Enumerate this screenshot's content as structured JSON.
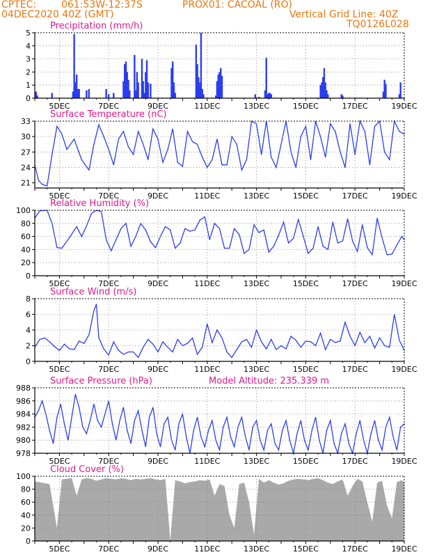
{
  "header": {
    "source": "CPTEC:",
    "coords": "061:53W-12:37S",
    "location": "PROX01: CACOAL (RO)",
    "date": "04DEC2020 40Z (GMT)",
    "grid_note": "Vertical Grid Line: 40Z",
    "model_code": "TQ0126L028"
  },
  "model_altitude_label": "Model Altitude: 235.339 m",
  "colors": {
    "header": "#e8760f",
    "title": "#e0198a",
    "line": "#2a3cf0",
    "bar": "#2a3cf0",
    "cloud": "#a9a9a9",
    "grid": "#7a7a7a",
    "axis": "#000000"
  },
  "x_axis": {
    "start_day": 4,
    "end_day": 19,
    "tick_labels": [
      "5DEC",
      "7DEC",
      "9DEC",
      "11DEC",
      "13DEC",
      "15DEC",
      "17DEC",
      "19DEC"
    ],
    "tick_days": [
      5,
      7,
      9,
      11,
      13,
      15,
      17,
      19
    ]
  },
  "chart_data": [
    {
      "type": "bar",
      "title": "Precipitation (mm/h)",
      "ylim": [
        0,
        5
      ],
      "yticks": [
        0,
        1,
        2,
        3,
        4,
        5
      ],
      "x": [
        4.05,
        4.1,
        4.7,
        5.55,
        5.6,
        5.65,
        5.7,
        5.75,
        5.8,
        6.1,
        6.2,
        6.9,
        7.0,
        7.2,
        7.6,
        7.65,
        7.7,
        7.75,
        7.8,
        7.85,
        8.05,
        8.1,
        8.15,
        8.2,
        8.35,
        8.4,
        8.45,
        8.5,
        8.55,
        8.6,
        8.7,
        9.55,
        9.6,
        9.65,
        9.7,
        10.55,
        10.6,
        10.65,
        10.7,
        10.75,
        10.8,
        10.85,
        11.35,
        11.4,
        11.45,
        11.5,
        11.55,
        11.6,
        12.95,
        13.1,
        13.35,
        13.4,
        13.45,
        13.5,
        13.55,
        13.6,
        15.6,
        15.65,
        15.7,
        15.75,
        15.8,
        15.85,
        15.9,
        16.45,
        16.5,
        18.15,
        18.2,
        18.25,
        18.8,
        18.85
      ],
      "values": [
        0.5,
        0.2,
        0.4,
        0.5,
        4.9,
        1.2,
        1.8,
        0.7,
        0.7,
        0.6,
        0.7,
        0.7,
        0.3,
        0.4,
        1.3,
        2.6,
        2.8,
        2.0,
        1.4,
        0.6,
        3.3,
        0.6,
        2.0,
        1.2,
        3.0,
        1.3,
        0.4,
        2.0,
        2.9,
        1.2,
        1.1,
        2.3,
        2.8,
        1.2,
        0.4,
        4.1,
        2.6,
        1.6,
        1.2,
        5.0,
        0.7,
        0.3,
        0.2,
        1.3,
        1.8,
        2.0,
        2.3,
        1.7,
        0.3,
        0.1,
        0.6,
        3.1,
        0.3,
        0.4,
        0.4,
        0.3,
        1.0,
        1.2,
        1.6,
        2.3,
        1.2,
        0.6,
        0.3,
        0.3,
        0.2,
        0.5,
        1.4,
        1.1,
        0.3,
        1.2
      ]
    },
    {
      "type": "line",
      "title": "Surface Temperature (nC)",
      "ylim": [
        20,
        33
      ],
      "yticks": [
        21,
        24,
        27,
        30,
        33
      ],
      "x": [
        4.0,
        4.15,
        4.3,
        4.5,
        4.7,
        4.9,
        5.1,
        5.3,
        5.6,
        5.9,
        6.2,
        6.4,
        6.6,
        6.8,
        7.0,
        7.2,
        7.4,
        7.6,
        7.8,
        8.0,
        8.2,
        8.4,
        8.6,
        8.8,
        9.0,
        9.2,
        9.4,
        9.6,
        9.8,
        10.0,
        10.2,
        10.4,
        10.6,
        10.8,
        11.0,
        11.2,
        11.4,
        11.6,
        11.8,
        12.0,
        12.2,
        12.4,
        12.6,
        12.8,
        13.0,
        13.2,
        13.4,
        13.6,
        13.8,
        14.0,
        14.2,
        14.4,
        14.6,
        14.8,
        15.0,
        15.2,
        15.4,
        15.6,
        15.8,
        16.0,
        16.2,
        16.4,
        16.6,
        16.8,
        17.0,
        17.2,
        17.4,
        17.6,
        17.8,
        18.0,
        18.2,
        18.4,
        18.6,
        18.8,
        19.0
      ],
      "values": [
        24.5,
        21.5,
        20.7,
        20.4,
        26.5,
        32.0,
        30.5,
        27.5,
        29.5,
        25.5,
        23.5,
        28.5,
        32.3,
        30.0,
        27.5,
        24.5,
        29.5,
        31.0,
        28.0,
        26.5,
        31.0,
        28.5,
        25.5,
        31.5,
        29.5,
        25.0,
        27.5,
        31.5,
        25.0,
        24.2,
        31.0,
        29.0,
        28.5,
        26.0,
        24.0,
        25.5,
        29.5,
        24.5,
        24.5,
        30.0,
        28.5,
        23.5,
        25.5,
        33.0,
        32.5,
        26.5,
        33.0,
        26.0,
        24.0,
        28.5,
        33.0,
        27.0,
        24.0,
        30.0,
        32.0,
        25.5,
        33.0,
        30.0,
        26.0,
        32.5,
        31.0,
        27.0,
        24.0,
        32.5,
        26.5,
        33.0,
        31.0,
        24.5,
        32.0,
        33.0,
        27.0,
        25.5,
        33.0,
        31.0,
        30.5
      ]
    },
    {
      "type": "line",
      "title": "Relative Humidity (%)",
      "ylim": [
        0,
        100
      ],
      "yticks": [
        0,
        20,
        40,
        60,
        80,
        100
      ],
      "x": [
        4.0,
        4.2,
        4.5,
        4.7,
        4.9,
        5.1,
        5.4,
        5.7,
        5.9,
        6.1,
        6.3,
        6.5,
        6.7,
        6.9,
        7.1,
        7.3,
        7.5,
        7.7,
        7.9,
        8.1,
        8.3,
        8.5,
        8.7,
        8.9,
        9.1,
        9.3,
        9.5,
        9.7,
        9.9,
        10.1,
        10.3,
        10.5,
        10.7,
        10.9,
        11.1,
        11.3,
        11.5,
        11.7,
        11.9,
        12.1,
        12.3,
        12.5,
        12.7,
        12.9,
        13.1,
        13.3,
        13.5,
        13.7,
        13.9,
        14.1,
        14.3,
        14.5,
        14.7,
        14.9,
        15.1,
        15.3,
        15.5,
        15.7,
        15.9,
        16.1,
        16.3,
        16.5,
        16.7,
        16.9,
        17.1,
        17.3,
        17.5,
        17.7,
        17.9,
        18.1,
        18.3,
        18.5,
        18.7,
        18.9,
        19.0
      ],
      "values": [
        88,
        99,
        100,
        80,
        43,
        42,
        58,
        75,
        60,
        76,
        95,
        100,
        98,
        55,
        38,
        55,
        72,
        80,
        45,
        60,
        80,
        70,
        52,
        43,
        60,
        75,
        70,
        42,
        50,
        72,
        68,
        70,
        85,
        90,
        55,
        80,
        72,
        42,
        42,
        72,
        63,
        34,
        40,
        78,
        66,
        70,
        36,
        45,
        62,
        82,
        50,
        57,
        86,
        60,
        34,
        42,
        75,
        45,
        40,
        82,
        50,
        53,
        87,
        53,
        37,
        78,
        43,
        32,
        88,
        58,
        32,
        33,
        47,
        60,
        55
      ]
    },
    {
      "type": "line",
      "title": "Surface Wind (m/s)",
      "ylim": [
        0,
        8
      ],
      "yticks": [
        0,
        2,
        4,
        6,
        8
      ],
      "x": [
        4.0,
        4.2,
        4.4,
        4.6,
        4.8,
        5.0,
        5.2,
        5.4,
        5.6,
        5.8,
        6.0,
        6.2,
        6.4,
        6.5,
        6.6,
        6.8,
        7.0,
        7.2,
        7.4,
        7.6,
        7.8,
        8.0,
        8.2,
        8.4,
        8.6,
        8.8,
        9.0,
        9.2,
        9.4,
        9.6,
        9.8,
        10.0,
        10.2,
        10.4,
        10.6,
        10.8,
        11.0,
        11.2,
        11.4,
        11.6,
        11.8,
        12.0,
        12.2,
        12.4,
        12.6,
        12.8,
        13.0,
        13.2,
        13.4,
        13.6,
        13.8,
        14.0,
        14.2,
        14.4,
        14.6,
        14.8,
        15.0,
        15.2,
        15.4,
        15.6,
        15.8,
        16.0,
        16.2,
        16.4,
        16.6,
        16.8,
        17.0,
        17.2,
        17.4,
        17.6,
        17.8,
        18.0,
        18.2,
        18.4,
        18.6,
        18.8,
        19.0
      ],
      "values": [
        1.8,
        2.8,
        3.0,
        2.5,
        1.9,
        1.4,
        2.2,
        1.6,
        1.5,
        2.6,
        2.3,
        3.4,
        6.5,
        7.3,
        3.0,
        1.6,
        0.8,
        2.5,
        1.4,
        0.9,
        1.2,
        1.2,
        0.5,
        1.8,
        2.8,
        2.2,
        1.2,
        2.5,
        1.8,
        1.2,
        2.8,
        2.0,
        2.3,
        3.0,
        0.9,
        1.8,
        4.8,
        2.4,
        4.0,
        3.0,
        1.2,
        0.5,
        1.5,
        2.5,
        2.8,
        1.8,
        4.0,
        2.5,
        1.6,
        2.8,
        1.5,
        2.0,
        1.6,
        3.2,
        2.7,
        1.8,
        2.6,
        2.5,
        2.0,
        3.6,
        1.5,
        2.8,
        2.4,
        2.6,
        5.0,
        3.2,
        2.0,
        3.7,
        2.4,
        3.2,
        1.7,
        3.0,
        2.0,
        1.8,
        6.0,
        2.7,
        1.4
      ]
    },
    {
      "type": "line",
      "title": "Surface Pressure (hPa)",
      "ylim": [
        978,
        988
      ],
      "yticks": [
        978,
        980,
        982,
        984,
        986,
        988
      ],
      "x": [
        4.0,
        4.15,
        4.3,
        4.45,
        4.6,
        4.75,
        4.9,
        5.05,
        5.2,
        5.35,
        5.5,
        5.65,
        5.8,
        5.95,
        6.1,
        6.25,
        6.4,
        6.55,
        6.7,
        6.85,
        7.0,
        7.15,
        7.3,
        7.45,
        7.6,
        7.75,
        7.9,
        8.05,
        8.2,
        8.35,
        8.5,
        8.65,
        8.8,
        8.95,
        9.1,
        9.25,
        9.4,
        9.55,
        9.7,
        9.85,
        10.0,
        10.15,
        10.3,
        10.45,
        10.6,
        10.75,
        10.9,
        11.05,
        11.2,
        11.35,
        11.5,
        11.65,
        11.8,
        11.95,
        12.1,
        12.25,
        12.4,
        12.55,
        12.7,
        12.85,
        13.0,
        13.15,
        13.3,
        13.45,
        13.6,
        13.75,
        13.9,
        14.05,
        14.2,
        14.35,
        14.5,
        14.65,
        14.8,
        14.95,
        15.1,
        15.25,
        15.4,
        15.55,
        15.7,
        15.85,
        16.0,
        16.15,
        16.3,
        16.45,
        16.6,
        16.75,
        16.9,
        17.05,
        17.2,
        17.35,
        17.5,
        17.65,
        17.8,
        17.95,
        18.1,
        18.25,
        18.4,
        18.55,
        18.7,
        18.85,
        19.0
      ],
      "values": [
        983.5,
        984.5,
        986.0,
        984.0,
        981.5,
        979.5,
        983.5,
        985.5,
        982.5,
        980.0,
        983.5,
        987.0,
        985.0,
        982.0,
        981.0,
        983.0,
        985.5,
        983.0,
        982.0,
        984.0,
        986.0,
        982.5,
        980.0,
        983.0,
        985.0,
        981.5,
        979.5,
        983.0,
        984.5,
        981.5,
        979.0,
        983.5,
        985.0,
        981.0,
        979.0,
        982.5,
        983.5,
        980.0,
        978.5,
        982.5,
        984.0,
        980.5,
        978.0,
        981.5,
        983.5,
        980.5,
        979.0,
        981.5,
        983.0,
        980.0,
        978.5,
        982.0,
        983.5,
        980.5,
        979.0,
        982.0,
        983.5,
        980.5,
        978.5,
        982.0,
        983.0,
        980.0,
        978.5,
        981.5,
        982.5,
        979.5,
        978.5,
        981.5,
        983.0,
        980.0,
        978.0,
        981.0,
        983.0,
        980.0,
        978.5,
        981.5,
        983.5,
        980.0,
        978.0,
        981.5,
        983.0,
        979.5,
        978.0,
        981.0,
        982.5,
        979.5,
        978.0,
        981.0,
        983.0,
        980.0,
        978.0,
        981.0,
        983.0,
        980.0,
        978.5,
        982.0,
        983.5,
        980.5,
        978.5,
        982.0,
        982.5
      ]
    },
    {
      "type": "area",
      "title": "Cloud Cover (%)",
      "ylim": [
        0,
        100
      ],
      "yticks": [
        0,
        20,
        40,
        60,
        80,
        100
      ],
      "x": [
        4.0,
        4.3,
        4.6,
        4.9,
        5.1,
        5.3,
        5.5,
        5.7,
        5.9,
        6.1,
        6.3,
        6.5,
        6.7,
        6.9,
        7.1,
        7.3,
        7.5,
        7.7,
        7.9,
        8.1,
        8.3,
        8.5,
        8.7,
        8.9,
        9.1,
        9.3,
        9.5,
        9.7,
        9.9,
        10.1,
        10.3,
        10.5,
        10.7,
        10.9,
        11.1,
        11.3,
        11.5,
        11.7,
        11.9,
        12.1,
        12.3,
        12.5,
        12.7,
        12.9,
        13.1,
        13.3,
        13.5,
        13.7,
        13.9,
        14.1,
        14.3,
        14.5,
        14.7,
        14.9,
        15.1,
        15.3,
        15.5,
        15.7,
        15.9,
        16.1,
        16.3,
        16.5,
        16.7,
        16.9,
        17.1,
        17.3,
        17.5,
        17.7,
        17.9,
        18.1,
        18.3,
        18.5,
        18.7,
        18.9,
        19.0
      ],
      "values": [
        92,
        90,
        88,
        20,
        95,
        96,
        97,
        70,
        95,
        97,
        96,
        93,
        95,
        97,
        96,
        95,
        97,
        96,
        94,
        96,
        95,
        96,
        97,
        95,
        94,
        96,
        1,
        94,
        92,
        89,
        91,
        92,
        94,
        93,
        95,
        70,
        88,
        85,
        40,
        20,
        88,
        90,
        60,
        10,
        96,
        90,
        94,
        90,
        87,
        89,
        93,
        95,
        96,
        95,
        94,
        96,
        97,
        94,
        90,
        88,
        92,
        95,
        70,
        85,
        96,
        92,
        60,
        30,
        90,
        93,
        55,
        35,
        91,
        94,
        90
      ]
    }
  ]
}
